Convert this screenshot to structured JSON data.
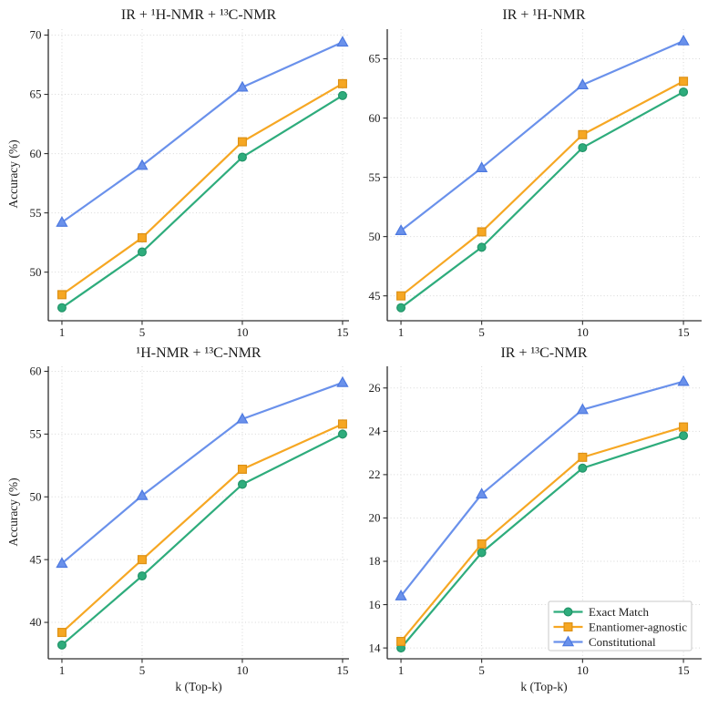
{
  "figure": {
    "background": "#ffffff",
    "text_color": "#1c1c1c",
    "grid_color": "#d7d7d7",
    "spine_color": "#2e2e2e"
  },
  "axes": {
    "ylabel": "Accuracy (%)",
    "xlabel": "k (Top-k)"
  },
  "legend": {
    "location": "lower right of IR + 13C-NMR subplot",
    "background": "#ffffff",
    "border_color": "#c9c9c9",
    "items": [
      {
        "label": "Exact Match",
        "marker": "circle",
        "color": "#2EAC7C",
        "edge": "#219468"
      },
      {
        "label": "Enantiomer-agnostic",
        "marker": "square",
        "color": "#F6A723",
        "edge": "#DD9116"
      },
      {
        "label": "Constitutional",
        "marker": "triangle",
        "color": "#6A91EB",
        "edge": "#4D79E0"
      }
    ]
  },
  "chart_data": [
    {
      "id": "ir-1h-nmr-13c-nmr",
      "type": "line",
      "title": "IR + ¹H-NMR + ¹³C-NMR",
      "xlabel": "",
      "ylabel": "Accuracy (%)",
      "x": [
        1,
        5,
        10,
        15
      ],
      "xticks": [
        1,
        5,
        10,
        15
      ],
      "yticks": [
        50,
        55,
        60,
        65,
        70
      ],
      "xlim": [
        0.32,
        15.32
      ],
      "ylim": [
        45.9,
        70.5
      ],
      "grid": true,
      "series": [
        {
          "name": "Exact Match",
          "values": [
            47.0,
            51.7,
            59.7,
            64.9
          ]
        },
        {
          "name": "Enantiomer-agnostic",
          "values": [
            48.1,
            52.9,
            61.0,
            65.9
          ]
        },
        {
          "name": "Constitutional",
          "values": [
            54.2,
            59.0,
            65.6,
            69.4
          ]
        }
      ]
    },
    {
      "id": "ir-1h-nmr",
      "type": "line",
      "title": "IR + ¹H-NMR",
      "xlabel": "",
      "ylabel": "",
      "x": [
        1,
        5,
        10,
        15
      ],
      "xticks": [
        1,
        5,
        10,
        15
      ],
      "yticks": [
        45,
        50,
        55,
        60,
        65
      ],
      "xlim": [
        0.32,
        15.9
      ],
      "ylim": [
        42.9,
        67.5
      ],
      "grid": true,
      "series": [
        {
          "name": "Exact Match",
          "values": [
            44.0,
            49.1,
            57.5,
            62.2
          ]
        },
        {
          "name": "Enantiomer-agnostic",
          "values": [
            45.0,
            50.4,
            58.6,
            63.1
          ]
        },
        {
          "name": "Constitutional",
          "values": [
            50.5,
            55.8,
            62.8,
            66.5
          ]
        }
      ]
    },
    {
      "id": "1h-nmr-13c-nmr",
      "type": "line",
      "title": "¹H-NMR + ¹³C-NMR",
      "xlabel": "k (Top-k)",
      "ylabel": "Accuracy (%)",
      "x": [
        1,
        5,
        10,
        15
      ],
      "xticks": [
        1,
        5,
        10,
        15
      ],
      "yticks": [
        40,
        45,
        50,
        55,
        60
      ],
      "xlim": [
        0.32,
        15.32
      ],
      "ylim": [
        37.1,
        60.4
      ],
      "grid": true,
      "series": [
        {
          "name": "Exact Match",
          "values": [
            38.2,
            43.7,
            51.0,
            55.0
          ]
        },
        {
          "name": "Enantiomer-agnostic",
          "values": [
            39.2,
            45.0,
            52.2,
            55.8
          ]
        },
        {
          "name": "Constitutional",
          "values": [
            44.7,
            50.1,
            56.2,
            59.1
          ]
        }
      ]
    },
    {
      "id": "ir-13c-nmr",
      "type": "line",
      "title": "IR + ¹³C-NMR",
      "xlabel": "k (Top-k)",
      "ylabel": "",
      "x": [
        1,
        5,
        10,
        15
      ],
      "xticks": [
        1,
        5,
        10,
        15
      ],
      "yticks": [
        14,
        16,
        18,
        20,
        22,
        24,
        26
      ],
      "xlim": [
        0.32,
        15.9
      ],
      "ylim": [
        13.5,
        27.0
      ],
      "grid": true,
      "legend": true,
      "series": [
        {
          "name": "Exact Match",
          "values": [
            14.0,
            18.4,
            22.3,
            23.8
          ]
        },
        {
          "name": "Enantiomer-agnostic",
          "values": [
            14.3,
            18.8,
            22.8,
            24.2
          ]
        },
        {
          "name": "Constitutional",
          "values": [
            16.4,
            21.1,
            25.0,
            26.3
          ]
        }
      ]
    }
  ]
}
